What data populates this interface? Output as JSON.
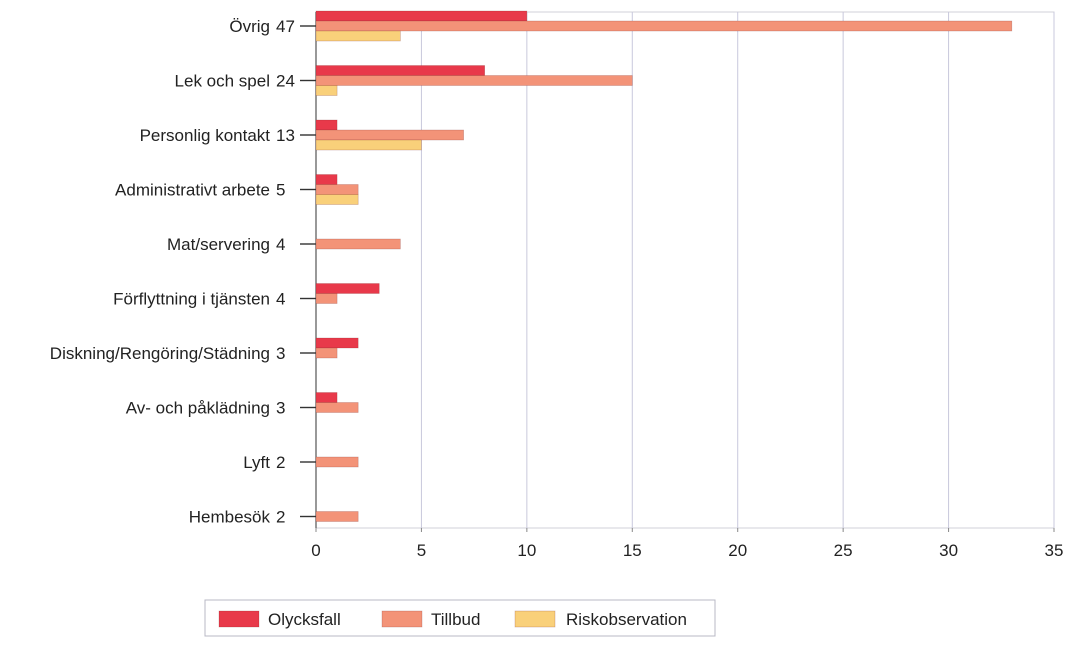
{
  "chart_data": {
    "type": "bar",
    "orientation": "horizontal",
    "categories": [
      "Övrig",
      "Lek och spel",
      "Personlig kontakt",
      "Administrativt arbete",
      "Mat/servering",
      "Förflyttning i tjänsten",
      "Diskning/Rengöring/Städning",
      "Av- och påklädning",
      "Lyft",
      "Hembesök"
    ],
    "totals": [
      47,
      24,
      13,
      5,
      4,
      4,
      3,
      3,
      2,
      2
    ],
    "series": [
      {
        "name": "Olycksfall",
        "color": "#e8394a",
        "values": [
          10,
          8,
          1,
          1,
          0,
          3,
          2,
          1,
          0,
          0
        ]
      },
      {
        "name": "Tillbud",
        "color": "#f39378",
        "values": [
          33,
          15,
          7,
          2,
          4,
          1,
          1,
          2,
          2,
          2
        ]
      },
      {
        "name": "Riskobservation",
        "color": "#f9d07a",
        "values": [
          4,
          1,
          5,
          2,
          0,
          0,
          0,
          0,
          0,
          0
        ]
      }
    ],
    "xlim": [
      0,
      35
    ],
    "x_ticks": [
      0,
      5,
      10,
      15,
      20,
      25,
      30,
      35
    ],
    "grid": true,
    "legend_position": "bottom"
  }
}
